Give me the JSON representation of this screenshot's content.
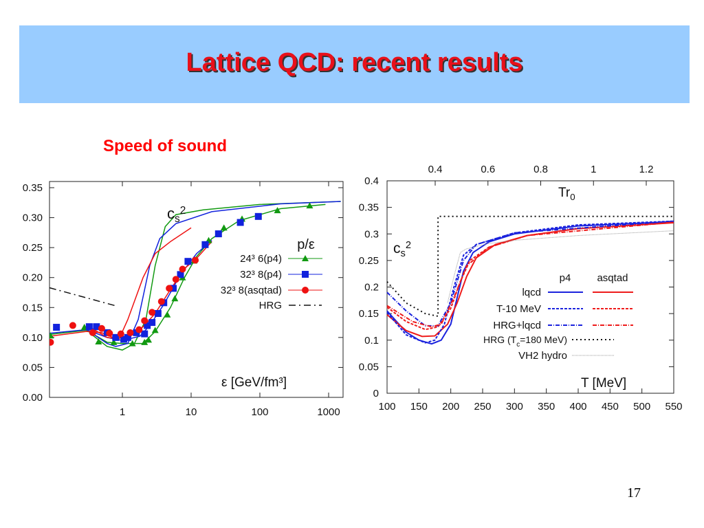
{
  "slide": {
    "title": "Lattice QCD: recent results",
    "subtitle": "Speed of sound",
    "page_number": "17",
    "colors": {
      "banner": "#99ccff",
      "title": "#e8101a"
    }
  },
  "chart_data": [
    {
      "type": "line",
      "xscale": "log",
      "xlabel": "ε [GeV/fm³]",
      "ylabel_parts": {
        "base": "c",
        "sub": "s",
        "sup": "2"
      },
      "xlim": [
        0.087,
        1500
      ],
      "ylim": [
        0,
        0.35
      ],
      "xticks": [
        1,
        10,
        100,
        1000
      ],
      "xtick_labels": [
        "1",
        "10",
        "100",
        "1000"
      ],
      "yticks": [
        0,
        0.05,
        0.1,
        0.15,
        0.2,
        0.25,
        0.3,
        0.35
      ],
      "ytick_labels": [
        "0.00",
        "0.05",
        "0.10",
        "0.15",
        "0.20",
        "0.25",
        "0.30",
        "0.35"
      ],
      "legend_title": "p/ε",
      "legend_placement": "right-middle",
      "series": [
        {
          "name": "24³ 6(p4)",
          "color": "#119911",
          "marker": "triangle",
          "points": [
            [
              0.09,
              0.103
            ],
            [
              0.28,
              0.117
            ],
            [
              0.45,
              0.093
            ],
            [
              0.75,
              0.092
            ],
            [
              1.4,
              0.09
            ],
            [
              2.1,
              0.092
            ],
            [
              2.4,
              0.096
            ],
            [
              3,
              0.112
            ],
            [
              4.5,
              0.138
            ],
            [
              5.8,
              0.165
            ],
            [
              7.5,
              0.2
            ],
            [
              11,
              0.228
            ],
            [
              18,
              0.262
            ],
            [
              30,
              0.283
            ],
            [
              55,
              0.298
            ],
            [
              180,
              0.312
            ],
            [
              530,
              0.32
            ]
          ]
        },
        {
          "name": "32³ 8(p4)",
          "color": "#1122dd",
          "marker": "square",
          "points": [
            [
              0.11,
              0.117
            ],
            [
              0.33,
              0.118
            ],
            [
              0.42,
              0.118
            ],
            [
              0.6,
              0.108
            ],
            [
              0.8,
              0.1
            ],
            [
              1.05,
              0.097
            ],
            [
              1.2,
              0.1
            ],
            [
              1.6,
              0.108
            ],
            [
              2.1,
              0.106
            ],
            [
              2.3,
              0.12
            ],
            [
              2.7,
              0.125
            ],
            [
              3.3,
              0.14
            ],
            [
              4,
              0.158
            ],
            [
              5.5,
              0.182
            ],
            [
              7,
              0.205
            ],
            [
              9,
              0.227
            ],
            [
              16,
              0.255
            ],
            [
              25,
              0.273
            ],
            [
              52,
              0.292
            ],
            [
              95,
              0.302
            ]
          ]
        },
        {
          "name": "32³ 8(asqtad)",
          "color": "#ee1111",
          "marker": "circle",
          "points": [
            [
              0.09,
              0.092
            ],
            [
              0.19,
              0.12
            ],
            [
              0.37,
              0.108
            ],
            [
              0.5,
              0.115
            ],
            [
              0.65,
              0.107
            ],
            [
              0.95,
              0.106
            ],
            [
              1.3,
              0.108
            ],
            [
              1.75,
              0.113
            ],
            [
              2.1,
              0.128
            ],
            [
              2.7,
              0.142
            ],
            [
              3.7,
              0.16
            ],
            [
              4.8,
              0.182
            ],
            [
              6,
              0.197
            ],
            [
              7.5,
              0.214
            ],
            [
              11.5,
              0.229
            ]
          ]
        },
        {
          "name": "HRG",
          "color": "#111111",
          "marker": "none",
          "dash": "10,5,2,5",
          "points": [
            [
              0.087,
              0.183
            ],
            [
              0.85,
              0.152
            ]
          ]
        }
      ],
      "curves": [
        {
          "series": "24³ 6(p4)",
          "kind": "p/ε fit",
          "color": "#119911",
          "points": [
            [
              0.087,
              0.105
            ],
            [
              0.3,
              0.112
            ],
            [
              0.6,
              0.092
            ],
            [
              1,
              0.09
            ],
            [
              2,
              0.09
            ],
            [
              3,
              0.11
            ],
            [
              5,
              0.15
            ],
            [
              8,
              0.2
            ],
            [
              12,
              0.235
            ],
            [
              20,
              0.265
            ],
            [
              50,
              0.295
            ],
            [
              200,
              0.315
            ],
            [
              900,
              0.322
            ]
          ]
        },
        {
          "series": "24³ 6(p4)",
          "kind": "cs2",
          "color": "#119911",
          "points": [
            [
              0.33,
              0.108
            ],
            [
              0.6,
              0.085
            ],
            [
              1,
              0.079
            ],
            [
              1.5,
              0.09
            ],
            [
              2.2,
              0.13
            ],
            [
              3,
              0.22
            ],
            [
              4.2,
              0.285
            ],
            [
              6,
              0.305
            ],
            [
              15,
              0.313
            ],
            [
              100,
              0.322
            ],
            [
              1500,
              0.327
            ]
          ]
        },
        {
          "series": "32³ 8(p4)",
          "kind": "p/ε fit",
          "color": "#1122dd",
          "points": [
            [
              0.087,
              0.107
            ],
            [
              0.3,
              0.113
            ],
            [
              0.6,
              0.1
            ],
            [
              1,
              0.095
            ],
            [
              1.8,
              0.102
            ],
            [
              2.5,
              0.12
            ],
            [
              4,
              0.155
            ],
            [
              7,
              0.205
            ],
            [
              12,
              0.24
            ],
            [
              20,
              0.262
            ]
          ]
        },
        {
          "series": "32³ 8(p4)",
          "kind": "cs2",
          "color": "#1122dd",
          "points": [
            [
              0.33,
              0.11
            ],
            [
              0.6,
              0.09
            ],
            [
              0.8,
              0.085
            ],
            [
              1.2,
              0.09
            ],
            [
              1.7,
              0.13
            ],
            [
              2.5,
              0.22
            ],
            [
              3.5,
              0.265
            ],
            [
              6,
              0.29
            ],
            [
              20,
              0.31
            ],
            [
              200,
              0.323
            ],
            [
              1500,
              0.327
            ]
          ]
        },
        {
          "series": "32³ 8(asqtad)",
          "kind": "p/ε fit",
          "color": "#ee1111",
          "points": [
            [
              0.087,
              0.102
            ],
            [
              0.3,
              0.11
            ],
            [
              0.5,
              0.108
            ],
            [
              0.8,
              0.098
            ],
            [
              1,
              0.1
            ],
            [
              1.5,
              0.105
            ],
            [
              2,
              0.118
            ],
            [
              3,
              0.14
            ],
            [
              5,
              0.18
            ],
            [
              8,
              0.215
            ],
            [
              12,
              0.232
            ],
            [
              20,
              0.26
            ]
          ]
        },
        {
          "series": "32³ 8(asqtad)",
          "kind": "cs2",
          "color": "#ee1111",
          "points": [
            [
              0.33,
              0.118
            ],
            [
              0.6,
              0.1
            ],
            [
              0.9,
              0.098
            ],
            [
              1.2,
              0.13
            ],
            [
              2,
              0.2
            ],
            [
              3,
              0.24
            ],
            [
              5,
              0.26
            ],
            [
              10,
              0.283
            ]
          ]
        }
      ]
    },
    {
      "type": "line",
      "xscale": "linear",
      "xlabel": "T [MeV]",
      "top_xlabel_parts": {
        "base": "Tr",
        "sub": "0"
      },
      "ylabel_parts": {
        "base": "c",
        "sub": "s",
        "sup": "2"
      },
      "xlim": [
        100,
        550
      ],
      "ylim": [
        0,
        0.4
      ],
      "xticks": [
        100,
        150,
        200,
        250,
        300,
        350,
        400,
        450,
        500,
        550
      ],
      "xtick_labels": [
        "100",
        "150",
        "200",
        "250",
        "300",
        "350",
        "400",
        "450",
        "500",
        "550"
      ],
      "yticks": [
        0,
        0.05,
        0.1,
        0.15,
        0.2,
        0.25,
        0.3,
        0.35,
        0.4
      ],
      "ytick_labels": [
        "0",
        "0.05",
        "0.1",
        "0.15",
        "0.2",
        "0.25",
        "0.3",
        "0.35",
        "0.4"
      ],
      "top_xticks": [
        0.4,
        0.6,
        0.8,
        1.0,
        1.2
      ],
      "top_xtick_labels": [
        "0.4",
        "0.6",
        "0.8",
        "1",
        "1.2"
      ],
      "legend_columns": [
        "p4",
        "asqtad"
      ],
      "legend_placement": "bottom-right",
      "legend_rows": [
        "lqcd",
        "T-10 MeV",
        "HRG+lqcd"
      ],
      "hrg_label_parts": {
        "pre": "HRG (T",
        "sub": "c",
        "post": "=180 MeV)"
      },
      "vh2_label": "VH2 hydro",
      "series": [
        {
          "name": "p4 lqcd",
          "color": "#1a22dd",
          "dash": "",
          "points": [
            [
              100,
              0.155
            ],
            [
              130,
              0.115
            ],
            [
              150,
              0.1
            ],
            [
              170,
              0.093
            ],
            [
              185,
              0.1
            ],
            [
              200,
              0.13
            ],
            [
              210,
              0.18
            ],
            [
              220,
              0.23
            ],
            [
              235,
              0.265
            ],
            [
              260,
              0.285
            ],
            [
              300,
              0.3
            ],
            [
              400,
              0.315
            ],
            [
              550,
              0.323
            ]
          ]
        },
        {
          "name": "asqtad lqcd",
          "color": "#ee1a1a",
          "dash": "",
          "points": [
            [
              100,
              0.148
            ],
            [
              130,
              0.118
            ],
            [
              155,
              0.107
            ],
            [
              175,
              0.108
            ],
            [
              195,
              0.13
            ],
            [
              210,
              0.17
            ],
            [
              225,
              0.22
            ],
            [
              240,
              0.255
            ],
            [
              270,
              0.28
            ],
            [
              320,
              0.297
            ],
            [
              400,
              0.31
            ],
            [
              550,
              0.321
            ]
          ]
        },
        {
          "name": "p4 T-10 MeV",
          "color": "#1a22dd",
          "dash": "4,2",
          "points": [
            [
              100,
              0.152
            ],
            [
              130,
              0.11
            ],
            [
              160,
              0.095
            ],
            [
              175,
              0.1
            ],
            [
              190,
              0.13
            ],
            [
              205,
              0.2
            ],
            [
              220,
              0.26
            ],
            [
              240,
              0.28
            ],
            [
              300,
              0.302
            ],
            [
              400,
              0.317
            ],
            [
              550,
              0.324
            ]
          ]
        },
        {
          "name": "asqtad T-10 MeV",
          "color": "#ee1a1a",
          "dash": "4,2",
          "points": [
            [
              100,
              0.162
            ],
            [
              130,
              0.135
            ],
            [
              160,
              0.12
            ],
            [
              180,
              0.125
            ],
            [
              200,
              0.16
            ],
            [
              215,
              0.21
            ],
            [
              230,
              0.25
            ],
            [
              260,
              0.275
            ],
            [
              320,
              0.297
            ],
            [
              400,
              0.31
            ],
            [
              550,
              0.322
            ]
          ]
        },
        {
          "name": "p4 HRG+lqcd",
          "color": "#1a22dd",
          "dash": "6,2,1,2",
          "points": [
            [
              100,
              0.19
            ],
            [
              130,
              0.155
            ],
            [
              160,
              0.127
            ],
            [
              180,
              0.127
            ],
            [
              200,
              0.17
            ],
            [
              220,
              0.25
            ],
            [
              240,
              0.28
            ],
            [
              300,
              0.302
            ],
            [
              550,
              0.324
            ]
          ]
        },
        {
          "name": "asqtad HRG+lqcd",
          "color": "#ee1a1a",
          "dash": "6,2,1,2",
          "points": [
            [
              100,
              0.165
            ],
            [
              140,
              0.135
            ],
            [
              170,
              0.125
            ],
            [
              185,
              0.13
            ],
            [
              205,
              0.18
            ],
            [
              225,
              0.24
            ],
            [
              260,
              0.275
            ],
            [
              320,
              0.297
            ],
            [
              550,
              0.322
            ]
          ]
        },
        {
          "name": "HRG (Tc=180 MeV)",
          "color": "#111111",
          "dash": "2,4",
          "points": [
            [
              100,
              0.21
            ],
            [
              130,
              0.17
            ],
            [
              160,
              0.15
            ],
            [
              180,
              0.145
            ],
            [
              180,
              0.333
            ],
            [
              550,
              0.333
            ]
          ]
        },
        {
          "name": "VH2 hydro",
          "color": "#999999",
          "dash": "1,1",
          "points": [
            [
              195,
              0.17
            ],
            [
              205,
              0.22
            ],
            [
              215,
              0.265
            ],
            [
              225,
              0.272
            ],
            [
              260,
              0.282
            ],
            [
              300,
              0.288
            ],
            [
              400,
              0.297
            ],
            [
              550,
              0.306
            ]
          ]
        }
      ]
    }
  ]
}
